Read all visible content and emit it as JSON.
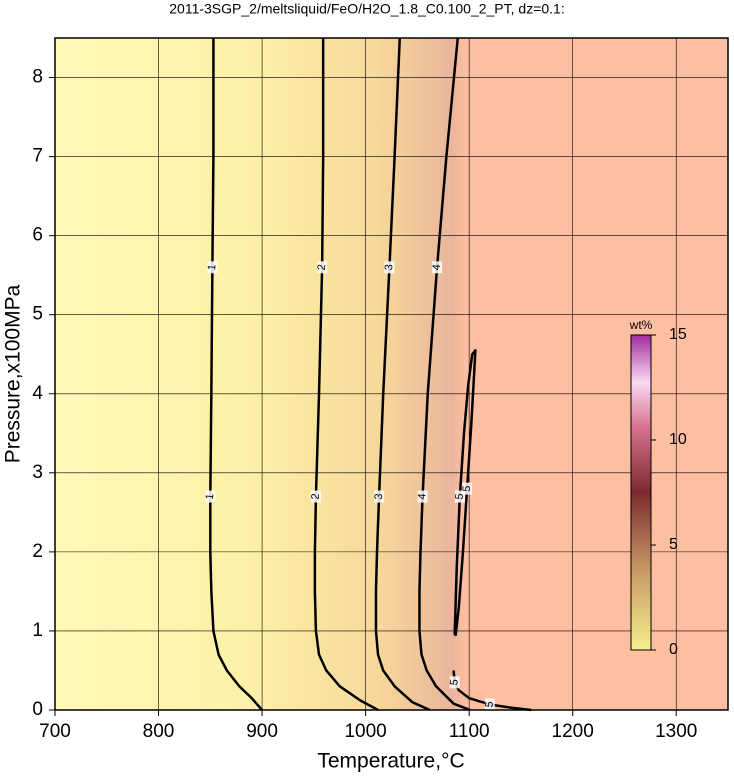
{
  "chart_data": {
    "type": "contour",
    "title": "2011-3SGP_2/meltsliquid/FeO/H2O_1.8_C0.100_2_PT, dz=0.1:",
    "x_label": "Temperature,°C",
    "y_label": "Pressure,x100MPa",
    "xlim": [
      700,
      1350
    ],
    "xticks": [
      700,
      800,
      900,
      1000,
      1100,
      1200,
      1300
    ],
    "ylim": [
      0,
      8.5
    ],
    "yticks": [
      0,
      1,
      2,
      3,
      4,
      5,
      6,
      7,
      8
    ],
    "grid": true,
    "contour_color": "#000000",
    "contours": [
      {
        "level": 1,
        "x": [
          853,
          853,
          852,
          851,
          850,
          850,
          851,
          853,
          858,
          866,
          878,
          890,
          900
        ],
        "y": [
          8.5,
          7,
          5.6,
          4,
          2.7,
          2,
          1.5,
          1,
          0.7,
          0.5,
          0.3,
          0.15,
          0
        ]
      },
      {
        "level": 2,
        "x": [
          959,
          959,
          958,
          955,
          952,
          951,
          951,
          952,
          955,
          962,
          975,
          995,
          1012
        ],
        "y": [
          8.5,
          7,
          5.6,
          4,
          2.7,
          2,
          1.5,
          1,
          0.7,
          0.5,
          0.3,
          0.12,
          0
        ]
      },
      {
        "level": 3,
        "x": [
          1033,
          1028,
          1023,
          1017,
          1013,
          1011,
          1010,
          1010,
          1012,
          1017,
          1028,
          1045,
          1062
        ],
        "y": [
          8.5,
          7,
          5.6,
          4,
          2.7,
          2,
          1.5,
          1,
          0.7,
          0.5,
          0.3,
          0.1,
          0
        ]
      },
      {
        "level": 4,
        "x": [
          1089,
          1078,
          1069,
          1060,
          1055,
          1053,
          1052,
          1052,
          1054,
          1059,
          1068,
          1085,
          1101
        ],
        "y": [
          8.5,
          7,
          5.6,
          4,
          2.7,
          2,
          1.5,
          1,
          0.7,
          0.5,
          0.3,
          0.08,
          0
        ]
      },
      {
        "level": 5,
        "x": [
          1086,
          1088,
          1091,
          1095,
          1099,
          1103,
          1106,
          1105,
          1102,
          1098,
          1094,
          1090,
          1087,
          1086
        ],
        "y": [
          0.95,
          1.8,
          2.7,
          3.5,
          4.1,
          4.5,
          4.55,
          4.3,
          3.6,
          2.8,
          2.0,
          1.3,
          0.95,
          0.95
        ]
      },
      {
        "level": 5,
        "x": [
          1085,
          1086,
          1090,
          1100,
          1120,
          1140,
          1160
        ],
        "y": [
          0.5,
          0.35,
          0.25,
          0.15,
          0.07,
          0.03,
          0
        ]
      }
    ],
    "colorbar": {
      "label": "wt%",
      "lim": [
        0,
        15
      ],
      "ticks": [
        0,
        5,
        10,
        15
      ]
    }
  }
}
